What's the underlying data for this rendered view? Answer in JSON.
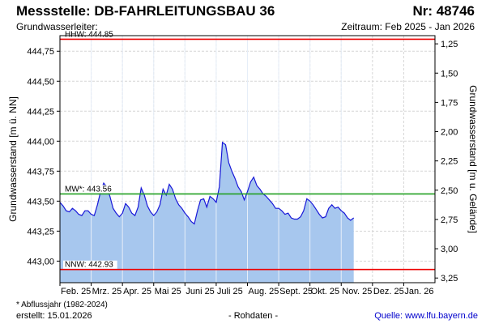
{
  "header": {
    "title": "Messstelle: DB-FAHRLEITUNGSBAU 36",
    "number": "Nr: 48746",
    "subtitle": "Grundwasserleiter:",
    "period": "Zeitraum: Feb 2025 - Jan 2026"
  },
  "footer": {
    "note": "* Abflussjahr (1982-2024)",
    "created": "erstellt:  15.01.2026",
    "raw": "- Rohdaten -",
    "source": "Quelle:  www.lfu.bayern.de"
  },
  "colors": {
    "area_fill": "#a7c7ee",
    "line": "#1818d8",
    "hhw": "#ee0000",
    "nnw": "#ee0000",
    "mw": "#22a022",
    "grid": "#d6d6d6"
  },
  "chart_data": {
    "type": "area",
    "ylabel": "Grundwasserstand [m ü. NN]",
    "ylabel_right": "Grundwasserstand [m u. Gelände]",
    "ylim": [
      442.82,
      444.88
    ],
    "ylim_right": [
      1.18,
      3.29
    ],
    "y_ticks": [
      "443,00",
      "443,25",
      "443,50",
      "443,75",
      "444,00",
      "444,25",
      "444,50",
      "444,75"
    ],
    "y_tick_values": [
      443.0,
      443.25,
      443.5,
      443.75,
      444.0,
      444.25,
      444.5,
      444.75
    ],
    "y2_ticks": [
      "1,25",
      "1,50",
      "1,75",
      "2,00",
      "2,25",
      "2,50",
      "2,75",
      "3,00",
      "3,25"
    ],
    "y2_tick_values": [
      1.25,
      1.5,
      1.75,
      2.0,
      2.25,
      2.5,
      2.75,
      3.0,
      3.25
    ],
    "x_ticks": [
      "Feb. 25",
      "Mrz. 25",
      "Apr. 25",
      "Mai 25",
      "Juni 25",
      "Juli 25",
      "Aug. 25",
      "Sept. 25",
      "Okt. 25",
      "Nov. 25",
      "Dez. 25",
      "Jan. 26"
    ],
    "x_range_months": [
      0,
      12
    ],
    "grid": true,
    "reference_lines": [
      {
        "label": "HHW: 444.85",
        "value": 444.85,
        "kind": "hhw"
      },
      {
        "label": "MW*: 443.56",
        "value": 443.56,
        "kind": "mw"
      },
      {
        "label": "NNW: 442.93",
        "value": 442.93,
        "kind": "nnw"
      }
    ],
    "series": [
      {
        "x": [
          0.0,
          0.1,
          0.2,
          0.3,
          0.4,
          0.5,
          0.6,
          0.7,
          0.8,
          0.9,
          1.0,
          1.1,
          1.2,
          1.3,
          1.4,
          1.5,
          1.6,
          1.7,
          1.8,
          1.9,
          2.0,
          2.1,
          2.2,
          2.3,
          2.4,
          2.5,
          2.6,
          2.7,
          2.8,
          2.9,
          3.0,
          3.1,
          3.2,
          3.3,
          3.4,
          3.5,
          3.6,
          3.7,
          3.8,
          3.9,
          4.0,
          4.1,
          4.2,
          4.3,
          4.4,
          4.5,
          4.6,
          4.7,
          4.8,
          4.9,
          5.0,
          5.1,
          5.2,
          5.3,
          5.4,
          5.5,
          5.6,
          5.7,
          5.8,
          5.9,
          6.0,
          6.1,
          6.2,
          6.3,
          6.4,
          6.5,
          6.6,
          6.7,
          6.8,
          6.9,
          7.0,
          7.1,
          7.2,
          7.3,
          7.4,
          7.5,
          7.6,
          7.7,
          7.8,
          7.9,
          8.0,
          8.1,
          8.2,
          8.3,
          8.4,
          8.5,
          8.6,
          8.7,
          8.8,
          8.9,
          9.0,
          9.1,
          9.2,
          9.3,
          9.4
        ],
        "y": [
          443.49,
          443.46,
          443.42,
          443.41,
          443.44,
          443.42,
          443.39,
          443.38,
          443.42,
          443.42,
          443.39,
          443.38,
          443.47,
          443.58,
          443.65,
          443.62,
          443.54,
          443.44,
          443.4,
          443.37,
          443.4,
          443.48,
          443.45,
          443.4,
          443.38,
          443.45,
          443.61,
          443.55,
          443.46,
          443.41,
          443.38,
          443.41,
          443.47,
          443.6,
          443.55,
          443.64,
          443.6,
          443.52,
          443.47,
          443.44,
          443.4,
          443.37,
          443.33,
          443.31,
          443.42,
          443.51,
          443.52,
          443.45,
          443.54,
          443.52,
          443.49,
          443.62,
          443.99,
          443.97,
          443.82,
          443.75,
          443.69,
          443.62,
          443.58,
          443.51,
          443.58,
          443.66,
          443.7,
          443.63,
          443.6,
          443.56,
          443.54,
          443.51,
          443.48,
          443.44,
          443.44,
          443.42,
          443.39,
          443.4,
          443.36,
          443.35,
          443.35,
          443.37,
          443.42,
          443.52,
          443.5,
          443.47,
          443.43,
          443.39,
          443.36,
          443.37,
          443.44,
          443.47,
          443.44,
          443.45,
          443.42,
          443.4,
          443.36,
          443.34,
          443.36
        ]
      }
    ]
  }
}
